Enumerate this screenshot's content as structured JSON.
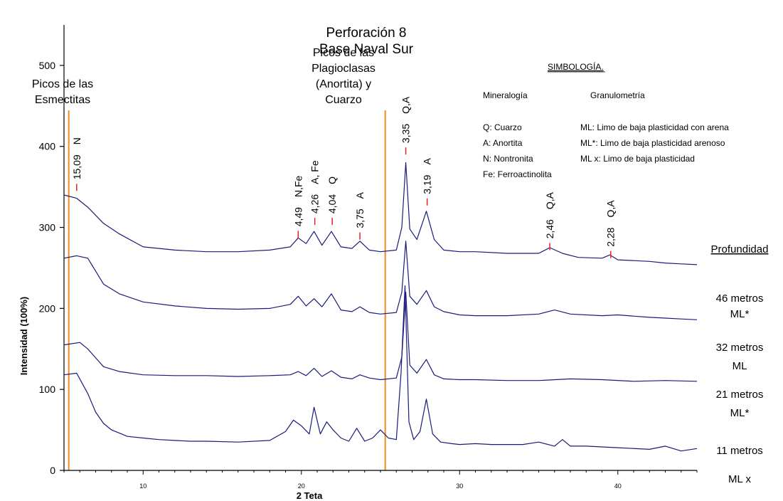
{
  "chart_data": {
    "type": "line",
    "title": "Perforación 8",
    "subtitle": "Base Naval Sur",
    "xlabel": "2 Teta",
    "ylabel": "Intensidad (100%)",
    "xlim": [
      5,
      45
    ],
    "ylim": [
      0,
      550
    ],
    "x_ticks": [
      10,
      20,
      30,
      40
    ],
    "y_ticks": [
      0,
      100,
      200,
      300,
      400,
      500
    ],
    "grid": false,
    "colors": {
      "series": "#1a1a7a",
      "reference_lines": "#f08a24",
      "peak_ticks": "#e8202a"
    },
    "reference_lines": [
      {
        "x": 5.3,
        "label_lines": [
          "Picos de las",
          "Esmectitas"
        ]
      },
      {
        "x": 25.3,
        "label_lines": [
          "Picos de las",
          "Plagioclasas",
          "(Anortita) y",
          "Cuarzo"
        ]
      }
    ],
    "peak_labels": [
      {
        "x": 5.8,
        "y": 345,
        "d_spacing": "15,09",
        "mineral": "N"
      },
      {
        "x": 19.8,
        "y": 287,
        "d_spacing": "4,49",
        "mineral": "N,Fe"
      },
      {
        "x": 20.85,
        "y": 303,
        "d_spacing": "4,26",
        "mineral": "A, Fe"
      },
      {
        "x": 21.95,
        "y": 303,
        "d_spacing": "4,04",
        "mineral": "Q"
      },
      {
        "x": 23.7,
        "y": 285,
        "d_spacing": "3,75",
        "mineral": "A"
      },
      {
        "x": 26.6,
        "y": 390,
        "d_spacing": "3,35",
        "mineral": "Q,A"
      },
      {
        "x": 27.95,
        "y": 327,
        "d_spacing": "3,19",
        "mineral": "A"
      },
      {
        "x": 35.7,
        "y": 272,
        "d_spacing": "2,46",
        "mineral": "Q,A"
      },
      {
        "x": 39.55,
        "y": 262,
        "d_spacing": "2,28",
        "mineral": "Q,A"
      }
    ],
    "series": [
      {
        "name": "46 metros",
        "soil": "ML*",
        "x": [
          5,
          5.8,
          6.5,
          7.5,
          8.5,
          10,
          12,
          14,
          16,
          18,
          19.3,
          19.8,
          20.3,
          20.8,
          21.3,
          21.9,
          22.5,
          23.2,
          23.7,
          24.3,
          25,
          26,
          26.35,
          26.6,
          26.85,
          27.3,
          27.9,
          28.4,
          29,
          30,
          31,
          33,
          35,
          35.7,
          36.5,
          37.5,
          39,
          39.5,
          40,
          41,
          42,
          43,
          44,
          45
        ],
        "values": [
          340,
          336,
          325,
          305,
          292,
          276,
          272,
          270,
          270,
          272,
          276,
          287,
          280,
          295,
          278,
          295,
          276,
          274,
          283,
          272,
          270,
          272,
          300,
          380,
          298,
          285,
          320,
          285,
          272,
          270,
          270,
          268,
          268,
          275,
          268,
          263,
          262,
          266,
          260,
          259,
          258,
          256,
          255,
          254
        ]
      },
      {
        "name": "32 metros",
        "soil": "ML",
        "x": [
          5,
          5.8,
          6.5,
          7.5,
          8.5,
          10,
          12,
          14,
          16,
          18,
          19.3,
          19.8,
          20.3,
          20.8,
          21.3,
          21.9,
          22.5,
          23.2,
          23.7,
          24.3,
          25,
          26,
          26.35,
          26.6,
          26.85,
          27.3,
          27.9,
          28.4,
          29,
          30,
          31,
          33,
          35,
          36,
          37,
          39,
          40,
          42,
          43,
          44,
          45
        ],
        "values": [
          262,
          265,
          262,
          230,
          218,
          208,
          203,
          200,
          199,
          200,
          205,
          215,
          203,
          212,
          202,
          218,
          198,
          196,
          202,
          195,
          193,
          195,
          220,
          283,
          215,
          205,
          222,
          202,
          196,
          192,
          191,
          191,
          193,
          198,
          193,
          191,
          192,
          189,
          188,
          187,
          186
        ]
      },
      {
        "name": "21 metros",
        "soil": "ML*",
        "x": [
          5,
          6,
          6.5,
          7.5,
          8.5,
          10,
          12,
          14,
          16,
          18,
          19.3,
          19.8,
          20.3,
          20.8,
          21.3,
          21.9,
          22.5,
          23.2,
          23.7,
          24.3,
          25,
          26,
          26.35,
          26.6,
          26.85,
          27.3,
          27.9,
          28.4,
          29,
          30,
          31,
          33,
          35,
          37,
          39,
          41,
          43,
          45
        ],
        "values": [
          155,
          158,
          150,
          128,
          122,
          118,
          117,
          117,
          116,
          117,
          118,
          122,
          117,
          126,
          116,
          123,
          115,
          113,
          118,
          114,
          112,
          114,
          140,
          220,
          130,
          120,
          137,
          118,
          113,
          112,
          112,
          111,
          111,
          113,
          112,
          110,
          111,
          110
        ]
      },
      {
        "name": "11 metros",
        "soil": "ML x",
        "x": [
          5,
          5.8,
          6.5,
          7,
          7.5,
          8,
          8.5,
          9,
          10,
          11,
          12,
          13,
          14,
          16,
          18,
          19,
          19.5,
          20,
          20.5,
          20.8,
          21.2,
          21.6,
          22,
          22.5,
          23,
          23.5,
          24,
          24.5,
          25,
          25.5,
          26,
          26.3,
          26.55,
          26.8,
          27.1,
          27.5,
          27.9,
          28.3,
          28.8,
          29.5,
          30,
          31,
          32,
          34,
          35,
          36,
          36.5,
          37,
          38,
          40,
          42,
          43,
          44,
          45
        ],
        "values": [
          118,
          120,
          95,
          72,
          58,
          50,
          46,
          42,
          40,
          38,
          37,
          36,
          36,
          35,
          37,
          48,
          62,
          55,
          45,
          78,
          45,
          60,
          50,
          40,
          36,
          52,
          36,
          40,
          50,
          40,
          38,
          120,
          228,
          60,
          38,
          48,
          88,
          45,
          35,
          33,
          32,
          33,
          32,
          32,
          35,
          30,
          38,
          30,
          30,
          28,
          26,
          30,
          24,
          27
        ]
      }
    ]
  },
  "legend": {
    "heading": "SIMBOLOGÍA.",
    "mineralogy_heading": "Mineralogía",
    "granulometry_heading": "Granulometría",
    "mineralogy": [
      "Q: Cuarzo",
      "A: Anortita",
      "N: Nontronita",
      "Fe: Ferroactinolita"
    ],
    "granulometry": [
      "ML: Limo de baja plasticidad con arena",
      "ML*: Limo de baja plasticidad arenoso",
      "ML x: Limo de baja plasticidad"
    ]
  },
  "depth_heading": "Profundidad"
}
